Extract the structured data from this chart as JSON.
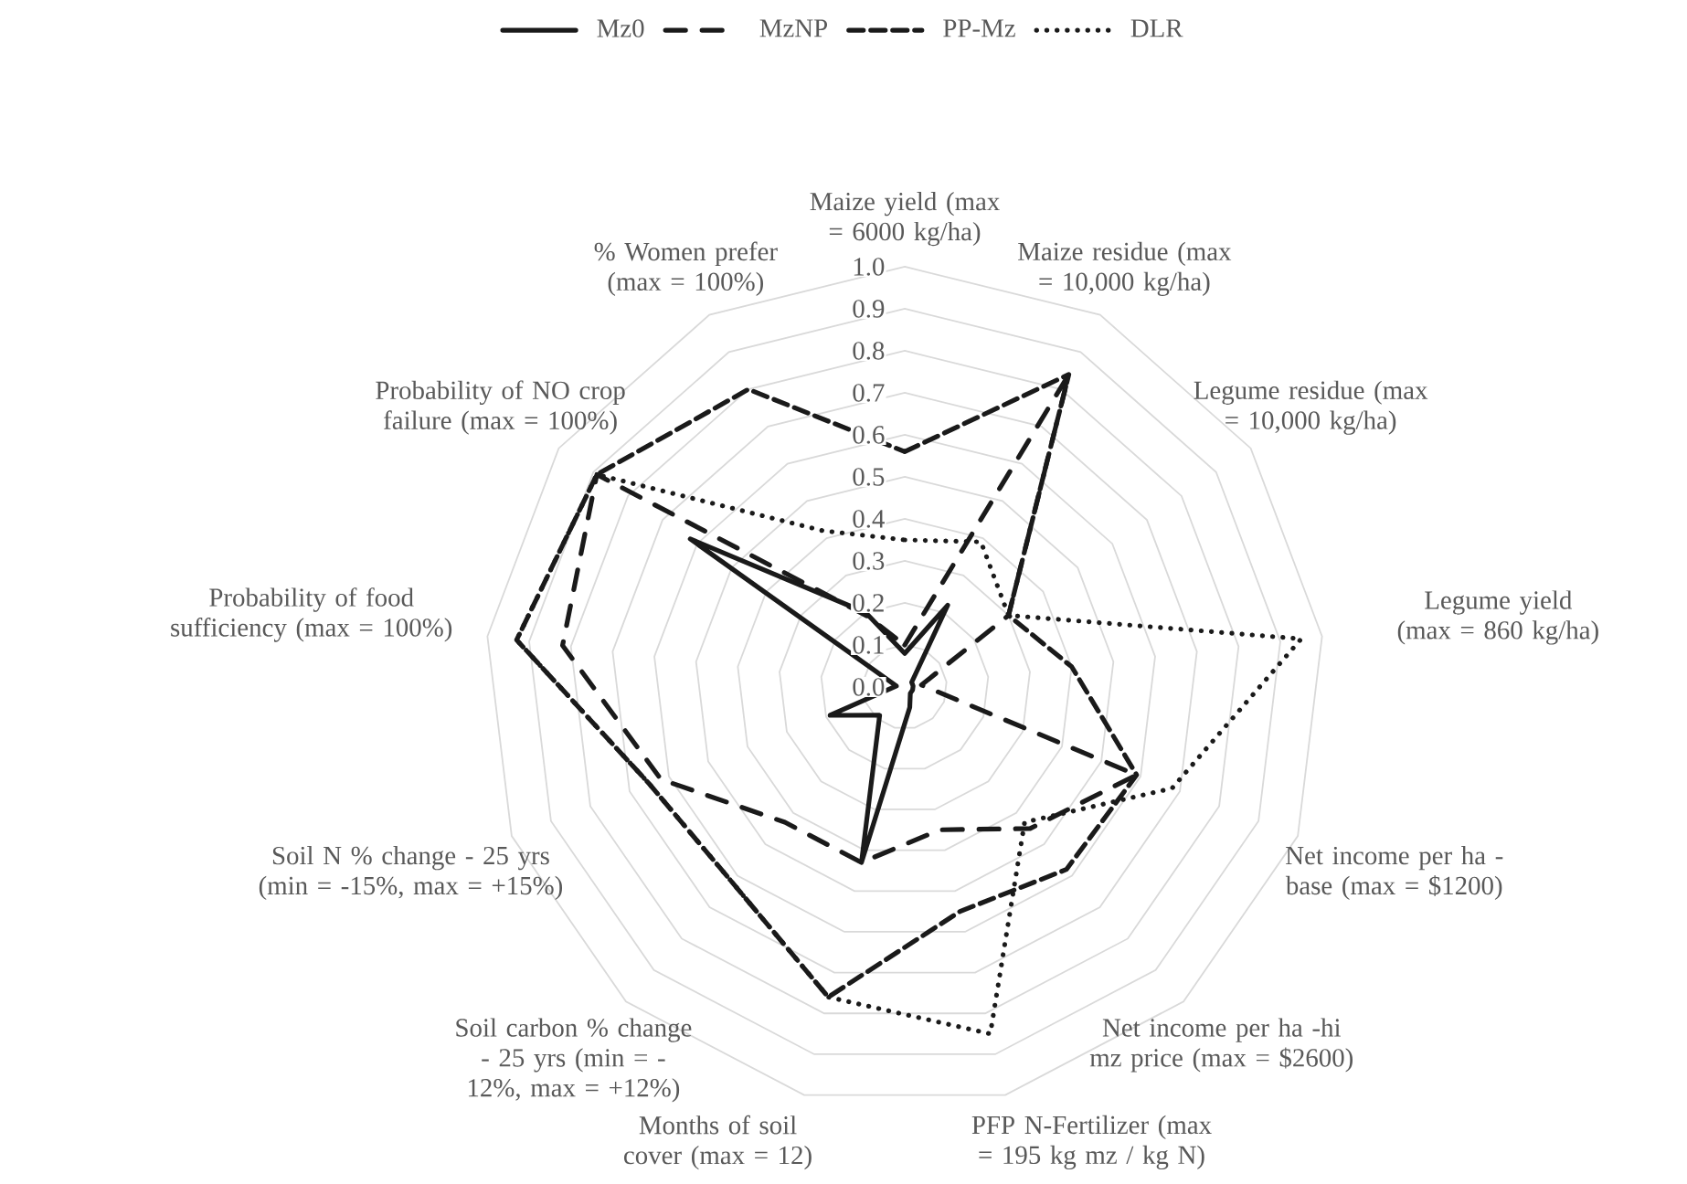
{
  "chart_data": {
    "type": "radar",
    "legend": "top",
    "grid": true,
    "categories": [
      "Maize yield (max = 6000 kg/ha)",
      "Maize residue (max = 10,000 kg/ha)",
      "Legume residue (max = 10,000 kg/ha)",
      "Legume yield (max = 860 kg/ha)",
      "Net income per ha -base (max = $1200)",
      "Net income per ha -hi mz price (max = $2600)",
      "PFP N-Fertilizer (max = 195 kg mz / kg N)",
      "Months of soil cover (max = 12)",
      "Soil carbon % change - 25 yrs (min = -12%, max = +12%)",
      "Soil N % change - 25 yrs (min = -15%, max = +15%)",
      "Probability of food sufficiency (max = 100%)",
      "Probability of NO crop failure (max = 100%)",
      "% Women prefer (max = 100%)"
    ],
    "ylim": [
      0,
      1
    ],
    "yticks": [
      {
        "value": 0,
        "label": "0.0"
      },
      {
        "value": 0.1,
        "label": "0.1"
      },
      {
        "value": 0.2,
        "label": "0.2"
      },
      {
        "value": 0.3,
        "label": "0.3"
      },
      {
        "value": 0.4,
        "label": "0.4"
      },
      {
        "value": 0.5,
        "label": "0.5"
      },
      {
        "value": 0.6,
        "label": "0.6"
      },
      {
        "value": 0.7,
        "label": "0.7"
      },
      {
        "value": 0.8,
        "label": "0.8"
      },
      {
        "value": 0.9,
        "label": "0.9"
      },
      {
        "value": 1,
        "label": "1.0"
      }
    ],
    "series": [
      {
        "name": "Mz0",
        "color": "#1a1a1a",
        "line_style": "solid",
        "values": [
          0.08,
          0.22,
          0.02,
          0.02,
          0.02,
          0.02,
          0.05,
          0.43,
          0.09,
          0.19,
          0.02,
          0.62,
          0.2
        ]
      },
      {
        "name": "MzNP",
        "color": "#1a1a1a",
        "line_style": "dashed",
        "values": [
          0.1,
          0.84,
          0.3,
          0.04,
          0.59,
          0.45,
          0.35,
          0.43,
          0.43,
          0.62,
          0.82,
          0.89,
          0.19
        ]
      },
      {
        "name": "PP-Mz",
        "color": "#1a1a1a",
        "line_style": "dashed",
        "values": [
          0.56,
          0.84,
          0.3,
          0.4,
          0.59,
          0.58,
          0.55,
          0.76,
          0.62,
          0.65,
          0.93,
          0.89,
          0.8
        ]
      },
      {
        "name": "DLR",
        "color": "#1a1a1a",
        "line_style": "dotted",
        "values": [
          0.35,
          0.39,
          0.3,
          0.95,
          0.68,
          0.43,
          0.85,
          0.76,
          0.62,
          0.65,
          0.93,
          0.89,
          0.42
        ]
      }
    ]
  }
}
